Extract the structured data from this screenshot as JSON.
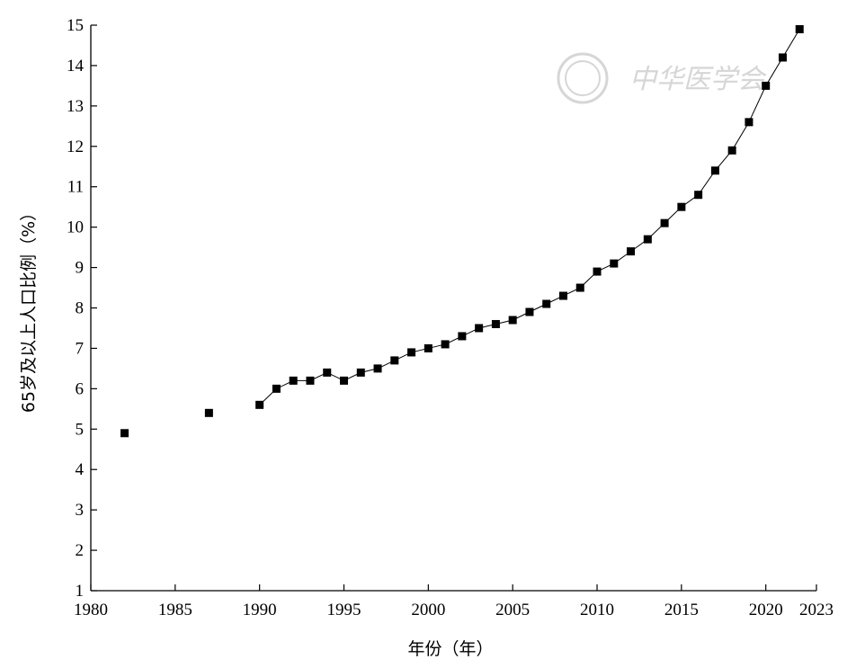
{
  "chart_data": {
    "type": "scatter",
    "xlabel": "年份（年）",
    "ylabel": "65岁及以上人口比例（%）",
    "xlim": [
      1980,
      2023
    ],
    "ylim": [
      1,
      15
    ],
    "x_ticks": [
      1980,
      1985,
      1990,
      1995,
      2000,
      2005,
      2010,
      2015,
      2020,
      2023
    ],
    "y_ticks": [
      1,
      2,
      3,
      4,
      5,
      6,
      7,
      8,
      9,
      10,
      11,
      12,
      13,
      14,
      15
    ],
    "grid": false,
    "series": [
      {
        "marker": "square",
        "connected_from_index": 2,
        "color": "#000000",
        "points": [
          {
            "x": 1982,
            "y": 4.9
          },
          {
            "x": 1987,
            "y": 5.4
          },
          {
            "x": 1990,
            "y": 5.6
          },
          {
            "x": 1991,
            "y": 6.0
          },
          {
            "x": 1992,
            "y": 6.2
          },
          {
            "x": 1993,
            "y": 6.2
          },
          {
            "x": 1994,
            "y": 6.4
          },
          {
            "x": 1995,
            "y": 6.2
          },
          {
            "x": 1996,
            "y": 6.4
          },
          {
            "x": 1997,
            "y": 6.5
          },
          {
            "x": 1998,
            "y": 6.7
          },
          {
            "x": 1999,
            "y": 6.9
          },
          {
            "x": 2000,
            "y": 7.0
          },
          {
            "x": 2001,
            "y": 7.1
          },
          {
            "x": 2002,
            "y": 7.3
          },
          {
            "x": 2003,
            "y": 7.5
          },
          {
            "x": 2004,
            "y": 7.6
          },
          {
            "x": 2005,
            "y": 7.7
          },
          {
            "x": 2006,
            "y": 7.9
          },
          {
            "x": 2007,
            "y": 8.1
          },
          {
            "x": 2008,
            "y": 8.3
          },
          {
            "x": 2009,
            "y": 8.5
          },
          {
            "x": 2010,
            "y": 8.9
          },
          {
            "x": 2011,
            "y": 9.1
          },
          {
            "x": 2012,
            "y": 9.4
          },
          {
            "x": 2013,
            "y": 9.7
          },
          {
            "x": 2014,
            "y": 10.1
          },
          {
            "x": 2015,
            "y": 10.5
          },
          {
            "x": 2016,
            "y": 10.8
          },
          {
            "x": 2017,
            "y": 11.4
          },
          {
            "x": 2018,
            "y": 11.9
          },
          {
            "x": 2019,
            "y": 12.6
          },
          {
            "x": 2020,
            "y": 13.5
          },
          {
            "x": 2021,
            "y": 14.2
          },
          {
            "x": 2022,
            "y": 14.9
          }
        ]
      }
    ]
  },
  "watermark": {
    "text": "中华医学会",
    "color": "#d6d6d6"
  }
}
